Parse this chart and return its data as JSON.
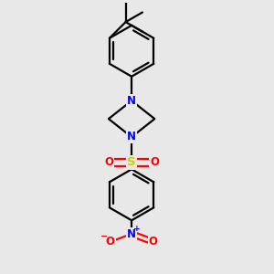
{
  "background_color": "#e8e8e8",
  "line_color": "#000000",
  "n_color": "#0000ff",
  "o_color": "#ff0000",
  "s_color": "#cccc00",
  "figsize": [
    3.0,
    3.0
  ],
  "dpi": 100,
  "xlim": [
    0,
    10
  ],
  "ylim": [
    0,
    10
  ]
}
